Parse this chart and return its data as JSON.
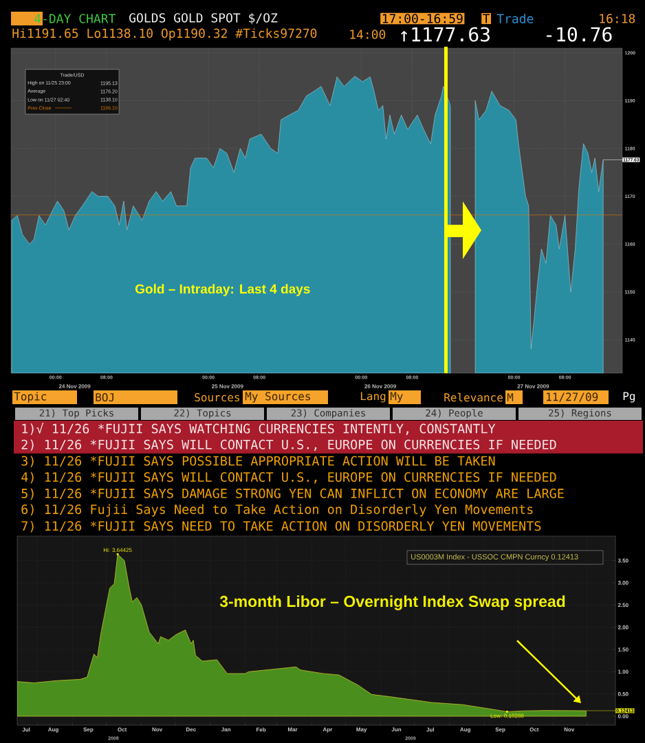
{
  "chart_data": [
    {
      "type": "area",
      "title": "4-DAY CHART",
      "subtitle": "GOLDS  GOLD SPOT $/OZ",
      "x": [
        "2009-11-23T17:06",
        "2009-11-23T18:00",
        "2009-11-23T18:48",
        "2009-11-23T19:54",
        "2009-11-23T20:36",
        "2009-11-23T21:24",
        "2009-11-23T22:24",
        "2009-11-23T23:30",
        "2009-11-24T00:18",
        "2009-11-24T01:18",
        "2009-11-24T02:06",
        "2009-11-24T03:06",
        "2009-11-24T04:12",
        "2009-11-24T05:42",
        "2009-11-24T06:42",
        "2009-11-24T08:12",
        "2009-11-24T09:18",
        "2009-11-24T10:00",
        "2009-11-24T10:42",
        "2009-11-24T11:12",
        "2009-11-24T12:12",
        "2009-11-24T13:36",
        "2009-11-24T14:42",
        "2009-11-24T15:48",
        "2009-11-24T16:48",
        "2009-11-24T18:06",
        "2009-11-24T19:00",
        "2009-11-24T20:36",
        "2009-11-24T21:12",
        "2009-11-24T21:54",
        "2009-11-24T23:42",
        "2009-11-25T00:48",
        "2009-11-25T01:48",
        "2009-11-25T02:54",
        "2009-11-25T04:00",
        "2009-11-25T05:00",
        "2009-11-25T05:48",
        "2009-11-25T06:30",
        "2009-11-25T08:18",
        "2009-11-25T09:48",
        "2009-11-25T10:54",
        "2009-11-25T11:24",
        "2009-11-25T12:42",
        "2009-11-25T14:06",
        "2009-11-25T15:24",
        "2009-11-25T16:36",
        "2009-11-25T17:42",
        "2009-11-25T18:24",
        "2009-11-25T19:06",
        "2009-11-25T20:12",
        "2009-11-25T21:18",
        "2009-11-25T23:00",
        "2009-11-26T00:12",
        "2009-11-26T01:24",
        "2009-11-26T02:00",
        "2009-11-26T02:42",
        "2009-11-26T03:24",
        "2009-11-26T03:54",
        "2009-11-26T04:30",
        "2009-11-26T05:12",
        "2009-11-26T06:18",
        "2009-11-26T07:18",
        "2009-11-26T08:48",
        "2009-11-26T09:48",
        "2009-11-26T10:54",
        "2009-11-26T11:36",
        "2009-11-26T12:36",
        "2009-11-26T12:54",
        "2009-11-26T14:00",
        "2009-11-26T16:00",
        "2009-11-26T17:54",
        "2009-11-26T18:30",
        "2009-11-26T19:36",
        "2009-11-26T20:30",
        "2009-11-26T21:48",
        "2009-11-26T23:12",
        "2009-11-27T00:18",
        "2009-11-27T00:42",
        "2009-11-27T01:24",
        "2009-11-27T01:48",
        "2009-11-27T02:18",
        "2009-11-27T02:30",
        "2009-11-27T02:40",
        "2009-11-27T03:12",
        "2009-11-27T03:42",
        "2009-11-27T04:18",
        "2009-11-27T05:00",
        "2009-11-27T05:42",
        "2009-11-27T06:36",
        "2009-11-27T07:06",
        "2009-11-27T08:00",
        "2009-11-27T08:54",
        "2009-11-27T09:36",
        "2009-11-27T10:12",
        "2009-11-27T10:54",
        "2009-11-27T11:36",
        "2009-11-27T12:12",
        "2009-11-27T12:42",
        "2009-11-27T13:18",
        "2009-11-27T13:36",
        "2009-11-27T14:00"
      ],
      "values": [
        1165,
        1166,
        1162,
        1160,
        1161,
        1166,
        1164,
        1167,
        1169,
        1167,
        1163,
        1166,
        1168,
        1171,
        1170,
        1170,
        1168,
        1164,
        1169,
        1163,
        1168,
        1165,
        1169,
        1171,
        1169,
        1171,
        1168,
        1168,
        1176,
        1178,
        1178,
        1176,
        1180,
        1179,
        1175,
        1180,
        1178,
        1182,
        1183,
        1180,
        1179,
        1186,
        1187,
        1188,
        1191,
        1192,
        1193,
        1191,
        1189,
        1195,
        1193,
        1195.13,
        1194,
        1195,
        1192,
        1188,
        1189,
        1182,
        1187,
        1183,
        1187,
        1184,
        1187,
        1184,
        1181,
        1187,
        1191,
        1193,
        1189,
        null,
        1190,
        1186,
        1188,
        1192,
        1189,
        1188,
        1186,
        1181,
        1174,
        1170,
        1168,
        1153,
        1138.1,
        1145,
        1152,
        1159,
        1156,
        1166,
        1164,
        1159,
        1166,
        1150,
        1159,
        1172,
        1181,
        1179,
        1175,
        1178,
        1171,
        1174,
        1177.63
      ],
      "color": "#2a8ea3",
      "xlim": [
        "2009-11-23T17:00",
        "2009-11-27T17:00"
      ],
      "ylim": [
        1133,
        1201
      ],
      "xticks": [
        {
          "value": "2009-11-24T00:00",
          "label": "00:00"
        },
        {
          "value": "2009-11-24T08:00",
          "label": "08:00"
        },
        {
          "value": "2009-11-25T00:00",
          "label": "00:00"
        },
        {
          "value": "2009-11-25T08:00",
          "label": "08:00"
        },
        {
          "value": "2009-11-26T00:00",
          "label": "00:00"
        },
        {
          "value": "2009-11-26T08:00",
          "label": "08:00"
        },
        {
          "value": "2009-11-27T00:00",
          "label": "00:00"
        },
        {
          "value": "2009-11-27T08:00",
          "label": "08:00"
        }
      ],
      "yticks": [
        1140,
        1150,
        1160,
        1170,
        1180,
        1190,
        1200
      ],
      "grid": true,
      "ref_lines": [
        {
          "axis": "y",
          "value": 1166.1,
          "color": "#e07b00"
        }
      ],
      "annotations": [
        "17:00-16:59",
        "T",
        "Trade",
        "16:18",
        "Hi1191.65 Lo1138.10 Op1190.32 #Ticks97270",
        "14:00",
        "↑1177.63",
        "-10.76",
        "Trade/USD",
        "High on 11/25 23:00",
        "1195.13",
        "Average",
        "1176.20",
        "Low on 11/27 02:40",
        "1138.10",
        "Prev Close",
        "1166.10",
        "Gold – Intraday: Last 4 days",
        "24 Nov 2009",
        "25 Nov 2009",
        "26 Nov 2009",
        "27 Nov 2009",
        {
          "text": "1177.63",
          "x": "2009-11-27T14:00",
          "y": 1177.63
        }
      ]
    },
    {
      "type": "other",
      "annotations": [
        "Topic",
        "BOJ",
        "Sources",
        "My Sources",
        "Lang",
        "My",
        "Relevance",
        "M",
        "11/27/09",
        "Pg",
        "21) Top Picks",
        "22) Topics",
        "23) Companies",
        "24) People",
        "25) Regions",
        "1)√ 11/26 *FUJII SAYS WATCHING CURRENCIES INTENTLY, CONSTANTLY",
        "2) 11/26 *FUJII SAYS WILL CONTACT U.S., EUROPE ON CURRENCIES IF NEEDED",
        "3) 11/26 *FUJII SAYS POSSIBLE APPROPRIATE ACTION WILL BE TAKEN",
        "4) 11/26 *FUJII SAYS WILL CONTACT U.S., EUROPE ON CURRENCIES IF NEEDED",
        "5) 11/26 *FUJII SAYS DAMAGE STRONG YEN CAN INFLICT ON ECONOMY ARE LARGE",
        "6) 11/26 Fujii Says Need to Take Action on Disorderly Yen Movements",
        "7) 11/26 *FUJII SAYS NEED TO TAKE ACTION ON DISORDERLY YEN MOVEMENTS"
      ]
    },
    {
      "type": "area",
      "x": [
        "2008-07-14",
        "2008-07-29",
        "2008-08-18",
        "2008-09-08",
        "2008-09-14",
        "2008-09-16",
        "2008-09-20",
        "2008-09-23",
        "2008-09-26",
        "2008-09-30",
        "2008-10-04",
        "2008-10-08",
        "2008-10-11",
        "2008-10-17",
        "2008-10-21",
        "2008-10-24",
        "2008-10-28",
        "2008-11-01",
        "2008-11-08",
        "2008-11-16",
        "2008-11-18",
        "2008-11-25",
        "2008-12-02",
        "2008-12-10",
        "2008-12-15",
        "2008-12-17",
        "2008-12-19",
        "2008-12-25",
        "2009-01-07",
        "2009-01-16",
        "2009-02-01",
        "2009-02-04",
        "2009-02-27",
        "2009-03-18",
        "2009-03-22",
        "2009-04-11",
        "2009-04-25",
        "2009-05-12",
        "2009-05-24",
        "2009-06-09",
        "2009-07-02",
        "2009-07-16",
        "2009-08-13",
        "2009-09-07",
        "2009-09-21",
        "2009-10-05",
        "2009-10-25",
        "2009-11-30"
      ],
      "values": [
        0.78,
        0.75,
        0.8,
        0.83,
        0.88,
        1.06,
        1.4,
        1.32,
        1.84,
        2.36,
        2.88,
        2.98,
        3.64425,
        3.5,
        2.93,
        2.57,
        2.67,
        2.51,
        1.89,
        1.63,
        1.79,
        1.71,
        1.84,
        1.94,
        1.63,
        1.71,
        1.37,
        1.24,
        1.27,
        0.96,
        0.96,
        1.0,
        1.06,
        1.11,
        1.04,
        0.96,
        0.93,
        0.7,
        0.49,
        0.44,
        0.36,
        0.31,
        0.26,
        0.16,
        0.10288,
        0.12,
        0.13,
        0.12413
      ],
      "color": "#4a8f1e",
      "xlim": [
        "2008-07-14",
        "2009-12-26"
      ],
      "ylim": [
        -0.2,
        4.05
      ],
      "xticks": [
        {
          "value": "2008-07-22",
          "label": "Jul"
        },
        {
          "value": "2008-08-01",
          "label": null
        },
        {
          "value": "2008-08-15",
          "label": "Aug"
        },
        {
          "value": "2008-09-01",
          "label": null
        },
        {
          "value": "2008-09-15",
          "label": "Sep"
        },
        {
          "value": "2008-10-01",
          "label": null
        },
        {
          "value": "2008-10-15",
          "label": "Oct"
        },
        {
          "value": "2008-11-01",
          "label": null
        },
        {
          "value": "2008-11-15",
          "label": "Nov"
        },
        {
          "value": "2008-12-01",
          "label": null
        },
        {
          "value": "2008-12-15",
          "label": "Dec"
        },
        {
          "value": "2009-01-01",
          "label": null
        },
        {
          "value": "2009-01-15",
          "label": "Jan"
        },
        {
          "value": "2009-02-01",
          "label": null
        },
        {
          "value": "2009-02-15",
          "label": "Feb"
        },
        {
          "value": "2009-03-01",
          "label": null
        },
        {
          "value": "2009-03-15",
          "label": "Mar"
        },
        {
          "value": "2009-04-01",
          "label": null
        },
        {
          "value": "2009-04-15",
          "label": "Apr"
        },
        {
          "value": "2009-05-01",
          "label": null
        },
        {
          "value": "2009-05-15",
          "label": "May"
        },
        {
          "value": "2009-06-01",
          "label": null
        },
        {
          "value": "2009-06-15",
          "label": "Jun"
        },
        {
          "value": "2009-07-01",
          "label": null
        },
        {
          "value": "2009-07-15",
          "label": "Jul"
        },
        {
          "value": "2009-08-01",
          "label": null
        },
        {
          "value": "2009-08-15",
          "label": "Aug"
        },
        {
          "value": "2009-09-01",
          "label": null
        },
        {
          "value": "2009-09-15",
          "label": "Sep"
        },
        {
          "value": "2009-10-01",
          "label": null
        },
        {
          "value": "2009-10-15",
          "label": "Oct"
        },
        {
          "value": "2009-11-01",
          "label": null
        },
        {
          "value": "2009-11-15",
          "label": "Nov"
        },
        {
          "value": "2009-12-01",
          "label": null
        }
      ],
      "yticks": [
        {
          "value": 0,
          "label": "0.00"
        },
        {
          "value": 0.5,
          "label": "0.50"
        },
        {
          "value": 1,
          "label": "1.00"
        },
        {
          "value": 1.5,
          "label": "1.50"
        },
        {
          "value": 2,
          "label": "2.00"
        },
        {
          "value": 2.5,
          "label": "2.50"
        },
        {
          "value": 3,
          "label": "3.00"
        },
        {
          "value": 3.5,
          "label": "3.50"
        }
      ],
      "grid": true,
      "annotations": [
        "3-month Libor – Overnight Index Swap spread",
        "US0003M Index - USSOC CMPN Curncy  0.12413",
        "2008",
        "2009",
        {
          "text": "Hi: 3.64425",
          "x": "2008-10-11",
          "y": 3.64425
        },
        {
          "text": "Low: 0.10288",
          "x": "2009-09-21",
          "y": 0.10288
        },
        {
          "text": "0.12413",
          "x": "2009-11-30",
          "y": 0.12413
        }
      ]
    }
  ]
}
